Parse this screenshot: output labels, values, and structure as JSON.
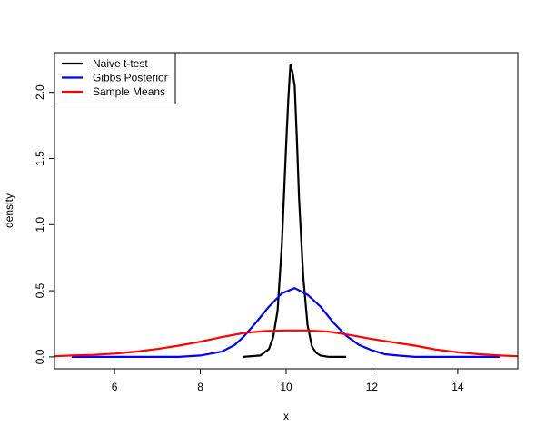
{
  "chart_data": {
    "type": "line",
    "xlabel": "x",
    "ylabel": "density",
    "xlim": [
      4.6,
      15.4
    ],
    "ylim": [
      -0.09,
      2.3
    ],
    "xticks": [
      6,
      8,
      10,
      12,
      14
    ],
    "yticks": [
      0.0,
      0.5,
      1.0,
      1.5,
      2.0
    ],
    "xtick_labels": [
      "6",
      "8",
      "10",
      "12",
      "14"
    ],
    "ytick_labels": [
      "0.0",
      "0.5",
      "1.0",
      "1.5",
      "2.0"
    ],
    "legend_position": "top-left",
    "series": [
      {
        "name": "Naive t-test",
        "color": "#000000",
        "x": [
          9.0,
          9.4,
          9.6,
          9.7,
          9.8,
          9.9,
          10.0,
          10.05,
          10.1,
          10.15,
          10.2,
          10.25,
          10.3,
          10.4,
          10.5,
          10.6,
          10.7,
          10.8,
          11.0,
          11.4
        ],
        "y": [
          0.0,
          0.01,
          0.06,
          0.15,
          0.35,
          0.85,
          1.6,
          1.95,
          2.21,
          2.15,
          2.05,
          1.65,
          1.2,
          0.6,
          0.24,
          0.08,
          0.03,
          0.01,
          0.0,
          0.0
        ]
      },
      {
        "name": "Gibbs Posterior",
        "color": "#0000ff",
        "x": [
          5.0,
          7.0,
          7.5,
          8.0,
          8.5,
          8.8,
          9.0,
          9.3,
          9.6,
          9.9,
          10.2,
          10.5,
          10.8,
          11.1,
          11.4,
          11.7,
          12.0,
          12.3,
          12.6,
          13.0,
          14.0,
          15.0
        ],
        "y": [
          0.0,
          0.0,
          0.0,
          0.01,
          0.04,
          0.09,
          0.15,
          0.26,
          0.38,
          0.48,
          0.52,
          0.47,
          0.38,
          0.26,
          0.16,
          0.09,
          0.05,
          0.02,
          0.01,
          0.0,
          0.0,
          0.0
        ]
      },
      {
        "name": "Sample Means",
        "color": "#ff0000",
        "x": [
          4.6,
          5.0,
          5.5,
          6.0,
          6.5,
          7.0,
          7.5,
          8.0,
          8.5,
          9.0,
          9.5,
          10.0,
          10.5,
          11.0,
          11.5,
          12.0,
          12.5,
          13.0,
          13.5,
          14.0,
          14.5,
          15.0,
          15.4
        ],
        "y": [
          0.005,
          0.01,
          0.015,
          0.025,
          0.04,
          0.06,
          0.085,
          0.115,
          0.15,
          0.18,
          0.195,
          0.2,
          0.2,
          0.19,
          0.165,
          0.135,
          0.11,
          0.085,
          0.055,
          0.035,
          0.02,
          0.01,
          0.005
        ]
      }
    ]
  }
}
